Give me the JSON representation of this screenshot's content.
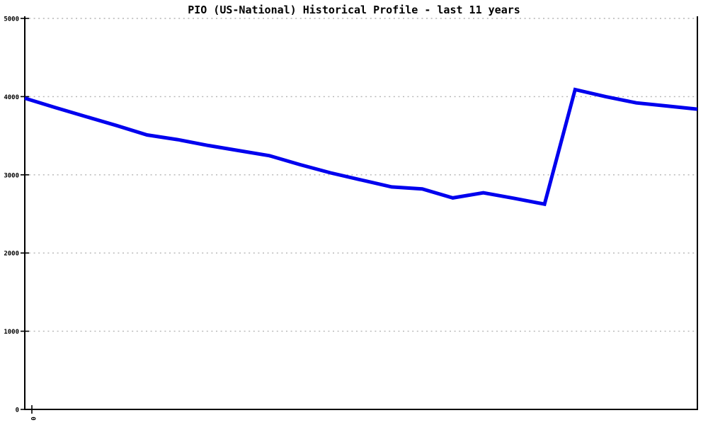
{
  "page": {
    "background_color": "#ffffff",
    "axis_color": "#000000",
    "grid_color": "#b4b4b4"
  },
  "chart_data": {
    "type": "line",
    "title": "PIO (US-National) Historical Profile - last 11 years",
    "xlabel": "",
    "ylabel": "",
    "ylim": [
      0,
      5000
    ],
    "yticks": [
      0,
      1000,
      2000,
      3000,
      4000,
      5000
    ],
    "x_tick_labels": [
      "0"
    ],
    "x_tick_label_rotation_deg": 90,
    "grid": "horizontal-dotted",
    "legend": "none",
    "series": [
      {
        "name": "PIO (US-National)",
        "color": "#0000EE",
        "line_width": 5,
        "values": [
          3980,
          3860,
          3745,
          3630,
          3510,
          3450,
          3375,
          3310,
          3245,
          3130,
          3025,
          2935,
          2845,
          2820,
          2705,
          2770,
          2700,
          2625,
          4090,
          4000,
          3920,
          3880,
          3840
        ]
      }
    ]
  }
}
